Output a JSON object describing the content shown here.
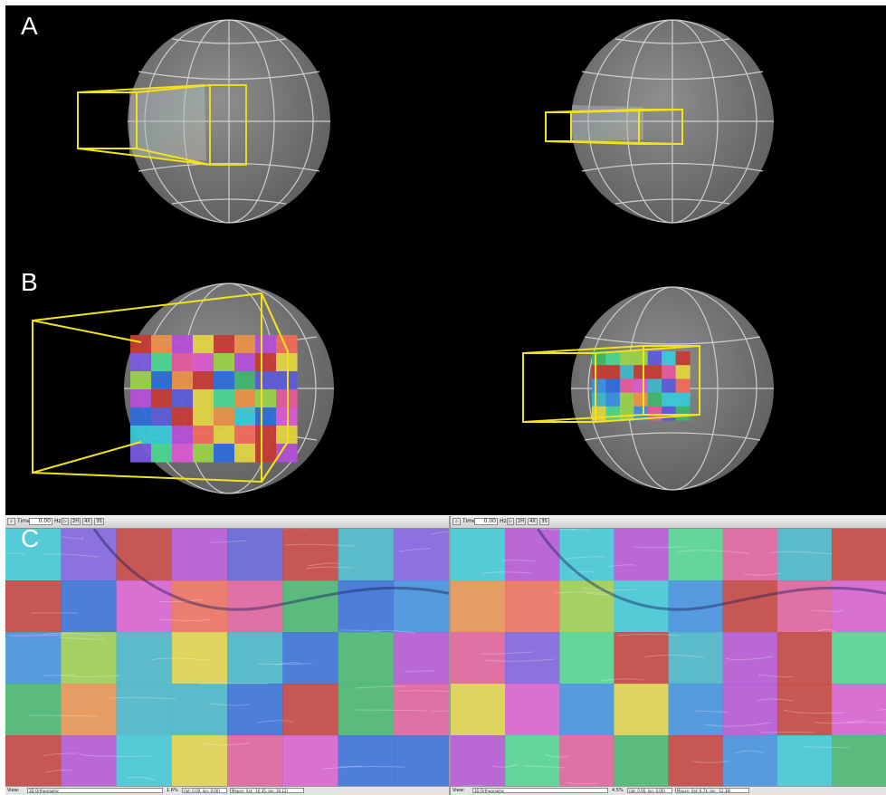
{
  "panel_labels": {
    "a": "A",
    "b": "B",
    "c": "C"
  },
  "colors": {
    "background": "#000000",
    "sphere_fill": "#8c8c8c",
    "sphere_grid": "#d8d8d8",
    "frustum": "#f2e21a",
    "tile_palette": [
      "#3fb46a",
      "#b24fd6",
      "#2f6bd8",
      "#e0d344",
      "#e25a9a",
      "#39c8d8",
      "#4ad58f",
      "#c33b35",
      "#e8904a",
      "#7a5be0",
      "#9ad04a",
      "#3a8ee0",
      "#d85ad0",
      "#40b4c8",
      "#f06a5a",
      "#5c5cd6"
    ]
  },
  "view_left": {
    "toolbar": {
      "time_label": "Time:",
      "time_value": "0.00",
      "unit": "Hz",
      "buttons": [
        "2H",
        "4X",
        "3S"
      ]
    },
    "status": {
      "view_label": "View:",
      "projection": "3D Orthographic",
      "zoom": "1.6%",
      "coords": "(lat: 0.00, lon: 0.00)",
      "mouse": "Mouse: (lat: -10.35, lon: 30.12)"
    }
  },
  "view_right": {
    "toolbar": {
      "time_label": "Time:",
      "time_value": "0.00",
      "unit": "Hz",
      "buttons": [
        "2H",
        "4X",
        "3S"
      ]
    },
    "status": {
      "view_label": "View:",
      "projection": "3D Orthographic",
      "zoom": "4.5%",
      "coords": "(lat: 0.00, lon: 0.00)",
      "mouse": "Mouse: (lat: 6.74, lon: -12.38)"
    }
  }
}
